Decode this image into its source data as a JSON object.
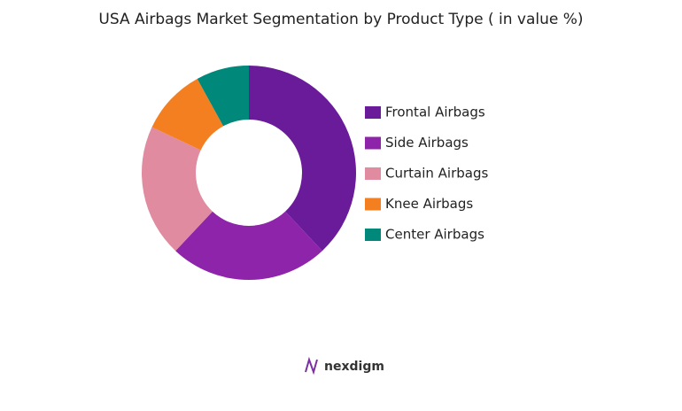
{
  "chart_data": {
    "type": "pie",
    "title": "USA Airbags Market Segmentation by Product Type ( in value %)",
    "donut": true,
    "categories": [
      "Frontal Airbags",
      "Side Airbags",
      "Curtain Airbags",
      "Knee Airbags",
      "Center Airbags"
    ],
    "values": [
      38,
      24,
      20,
      10,
      8
    ],
    "colors": [
      "#6a1b9a",
      "#8e24aa",
      "#e08ba0",
      "#f47f20",
      "#00897b"
    ],
    "legend": "right"
  },
  "brand": "nexdigm"
}
